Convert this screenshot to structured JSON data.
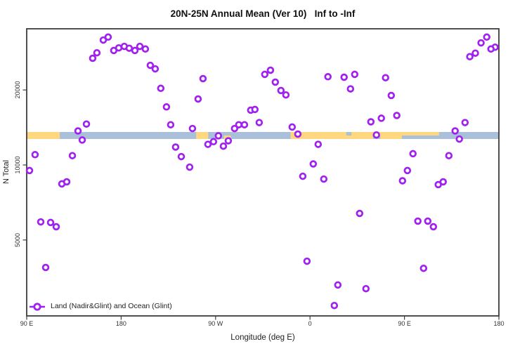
{
  "chart_data": {
    "type": "scatter",
    "title": "20N-25N Annual Mean (Ver 10)   Inf to -Inf",
    "xlabel": "Longitude (deg E)",
    "ylabel": "N Total",
    "y_scale": "log",
    "ylim": [
      2500,
      35000
    ],
    "y_ticks": [
      {
        "value": 5000,
        "label": "5000"
      },
      {
        "value": 10000,
        "label": "10000"
      },
      {
        "value": 20000,
        "label": "20000"
      }
    ],
    "x_axis_note": "x axis spans 450 degrees of longitude starting at 90E and wrapping eastward: 90E -> 180 -> 90W -> 0 -> 90E -> 180; offset_deg is degrees east of the left edge (90E)",
    "x_ticks": [
      {
        "offset_deg": 0,
        "label": "90 E"
      },
      {
        "offset_deg": 90,
        "label": "180"
      },
      {
        "offset_deg": 180,
        "label": "90 W"
      },
      {
        "offset_deg": 270,
        "label": "0"
      },
      {
        "offset_deg": 360,
        "label": "90 E"
      },
      {
        "offset_deg": 450,
        "label": "180"
      }
    ],
    "legend": {
      "label": "Land (Nadir&Glint) and Ocean (Glint)",
      "position": "bottom-left",
      "symbol": "open-circle-on-line"
    },
    "marker": {
      "shape": "open-circle",
      "color": "#a020f0"
    },
    "colors": {
      "marker": "#a020f0",
      "ocean_strip": "#a9bfda",
      "land_strip": "#ffd77e",
      "frame": "#3d3d3d"
    },
    "map_strip": {
      "description": "land/ocean map band along the 20N-25N latitude zone drawn across the plot near N Total ~13500",
      "center_value": 13500,
      "land_segments_offset_deg": [
        [
          0,
          31.5
        ],
        [
          161.5,
          173.0
        ],
        [
          251.5,
          393.0
        ]
      ],
      "ocean_notches": [
        {
          "range": [
            304.5,
            309.5
          ],
          "half": "top",
          "name": "Red Sea"
        },
        {
          "range": [
            330.0,
            337.0
          ],
          "half": "bottom",
          "name": "Arabian Sea"
        },
        {
          "range": [
            357.5,
            393.0
          ],
          "half": "bottom",
          "name": "Bay of Bengal / South China Sea"
        }
      ],
      "extra_land": [
        {
          "range": [
            188.0,
            194.5
          ],
          "half": "bottom",
          "name": "Cuba"
        }
      ]
    },
    "points_note": "each point is [offset_deg east of 90E left edge (0-450), N Total]",
    "points": [
      [
        73.0,
        31700
      ],
      [
        77.6,
        32600
      ],
      [
        62.9,
        26800
      ],
      [
        66.9,
        28200
      ],
      [
        83.0,
        28800
      ],
      [
        87.7,
        29500
      ],
      [
        93.0,
        29900
      ],
      [
        97.7,
        29400
      ],
      [
        103.1,
        28800
      ],
      [
        107.8,
        29900
      ],
      [
        113.1,
        29200
      ],
      [
        117.8,
        25100
      ],
      [
        122.5,
        24300
      ],
      [
        127.8,
        20300
      ],
      [
        133.2,
        17100
      ],
      [
        137.2,
        14500
      ],
      [
        56.9,
        14600
      ],
      [
        48.9,
        13700
      ],
      [
        52.9,
        12600
      ],
      [
        8.0,
        11000
      ],
      [
        43.5,
        10900
      ],
      [
        141.9,
        11800
      ],
      [
        147.3,
        10800
      ],
      [
        2.7,
        9500
      ],
      [
        168.0,
        22200
      ],
      [
        163.3,
        18400
      ],
      [
        226.9,
        23100
      ],
      [
        232.3,
        24000
      ],
      [
        236.9,
        21500
      ],
      [
        242.3,
        19900
      ],
      [
        247.0,
        19100
      ],
      [
        213.5,
        16600
      ],
      [
        217.5,
        16700
      ],
      [
        221.6,
        14800
      ],
      [
        202.1,
        14500
      ],
      [
        207.5,
        14500
      ],
      [
        198.1,
        14000
      ],
      [
        182.7,
        13100
      ],
      [
        158.0,
        14000
      ],
      [
        172.7,
        12100
      ],
      [
        178.0,
        12400
      ],
      [
        187.4,
        11900
      ],
      [
        192.1,
        12500
      ],
      [
        253.0,
        14200
      ],
      [
        258.4,
        13300
      ],
      [
        277.8,
        12100
      ],
      [
        287.1,
        22600
      ],
      [
        273.1,
        10100
      ],
      [
        155.3,
        9800
      ],
      [
        438.4,
        32600
      ],
      [
        433.0,
        30900
      ],
      [
        446.4,
        29700
      ],
      [
        442.4,
        29200
      ],
      [
        427.6,
        28100
      ],
      [
        422.3,
        27200
      ],
      [
        312.6,
        23100
      ],
      [
        302.5,
        22500
      ],
      [
        308.6,
        20200
      ],
      [
        342.0,
        22400
      ],
      [
        347.4,
        19000
      ],
      [
        352.7,
        15800
      ],
      [
        338.0,
        15400
      ],
      [
        328.0,
        14900
      ],
      [
        333.3,
        13200
      ],
      [
        417.7,
        14800
      ],
      [
        408.3,
        13700
      ],
      [
        412.3,
        12700
      ],
      [
        368.1,
        11100
      ],
      [
        402.3,
        10900
      ],
      [
        362.8,
        9500
      ],
      [
        33.5,
        8400
      ],
      [
        38.2,
        8560
      ],
      [
        13.4,
        5910
      ],
      [
        22.8,
        5880
      ],
      [
        28.1,
        5650
      ],
      [
        18.1,
        3880
      ],
      [
        263.1,
        9010
      ],
      [
        283.1,
        8780
      ],
      [
        267.1,
        4110
      ],
      [
        296.5,
        3300
      ],
      [
        293.2,
        2730
      ],
      [
        358.1,
        8640
      ],
      [
        392.2,
        8340
      ],
      [
        396.9,
        8560
      ],
      [
        317.3,
        6390
      ],
      [
        372.8,
        5950
      ],
      [
        382.2,
        5950
      ],
      [
        387.6,
        5650
      ],
      [
        378.2,
        3850
      ],
      [
        323.3,
        3190
      ]
    ]
  }
}
